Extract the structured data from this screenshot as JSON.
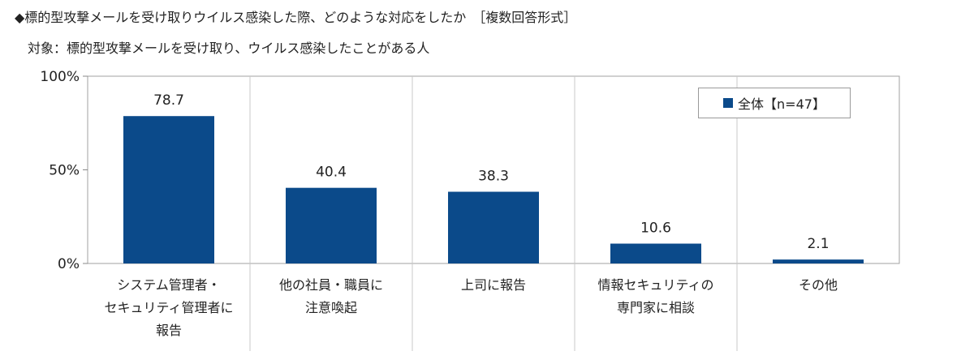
{
  "header": {
    "title": "◆標的型攻撃メールを受け取りウイルス感染した際、どのような対応をしたか　［複数回答形式］",
    "subtitle": "対象：標的型攻撃メールを受け取り、ウイルス感染したことがある人"
  },
  "legend": {
    "label": "全体【n=47】",
    "color": "#0b4a8a"
  },
  "chart_data": {
    "type": "bar",
    "categories": [
      "システム管理者・\nセキュリティ管理者に\n報告",
      "他の社員・職員に\n注意喚起",
      "上司に報告",
      "情報セキュリティの\n専門家に相談",
      "その他"
    ],
    "series": [
      {
        "name": "全体【n=47】",
        "values": [
          78.7,
          40.4,
          38.3,
          10.6,
          2.1
        ],
        "color": "#0b4a8a"
      }
    ],
    "data_labels": [
      "78.7",
      "40.4",
      "38.3",
      "10.6",
      "2.1"
    ],
    "ylim": [
      0,
      100
    ],
    "yticks": [
      0,
      50,
      100
    ],
    "ytick_labels": [
      "0%",
      "50%",
      "100%"
    ],
    "grid": false,
    "legend_position": "top-right"
  }
}
